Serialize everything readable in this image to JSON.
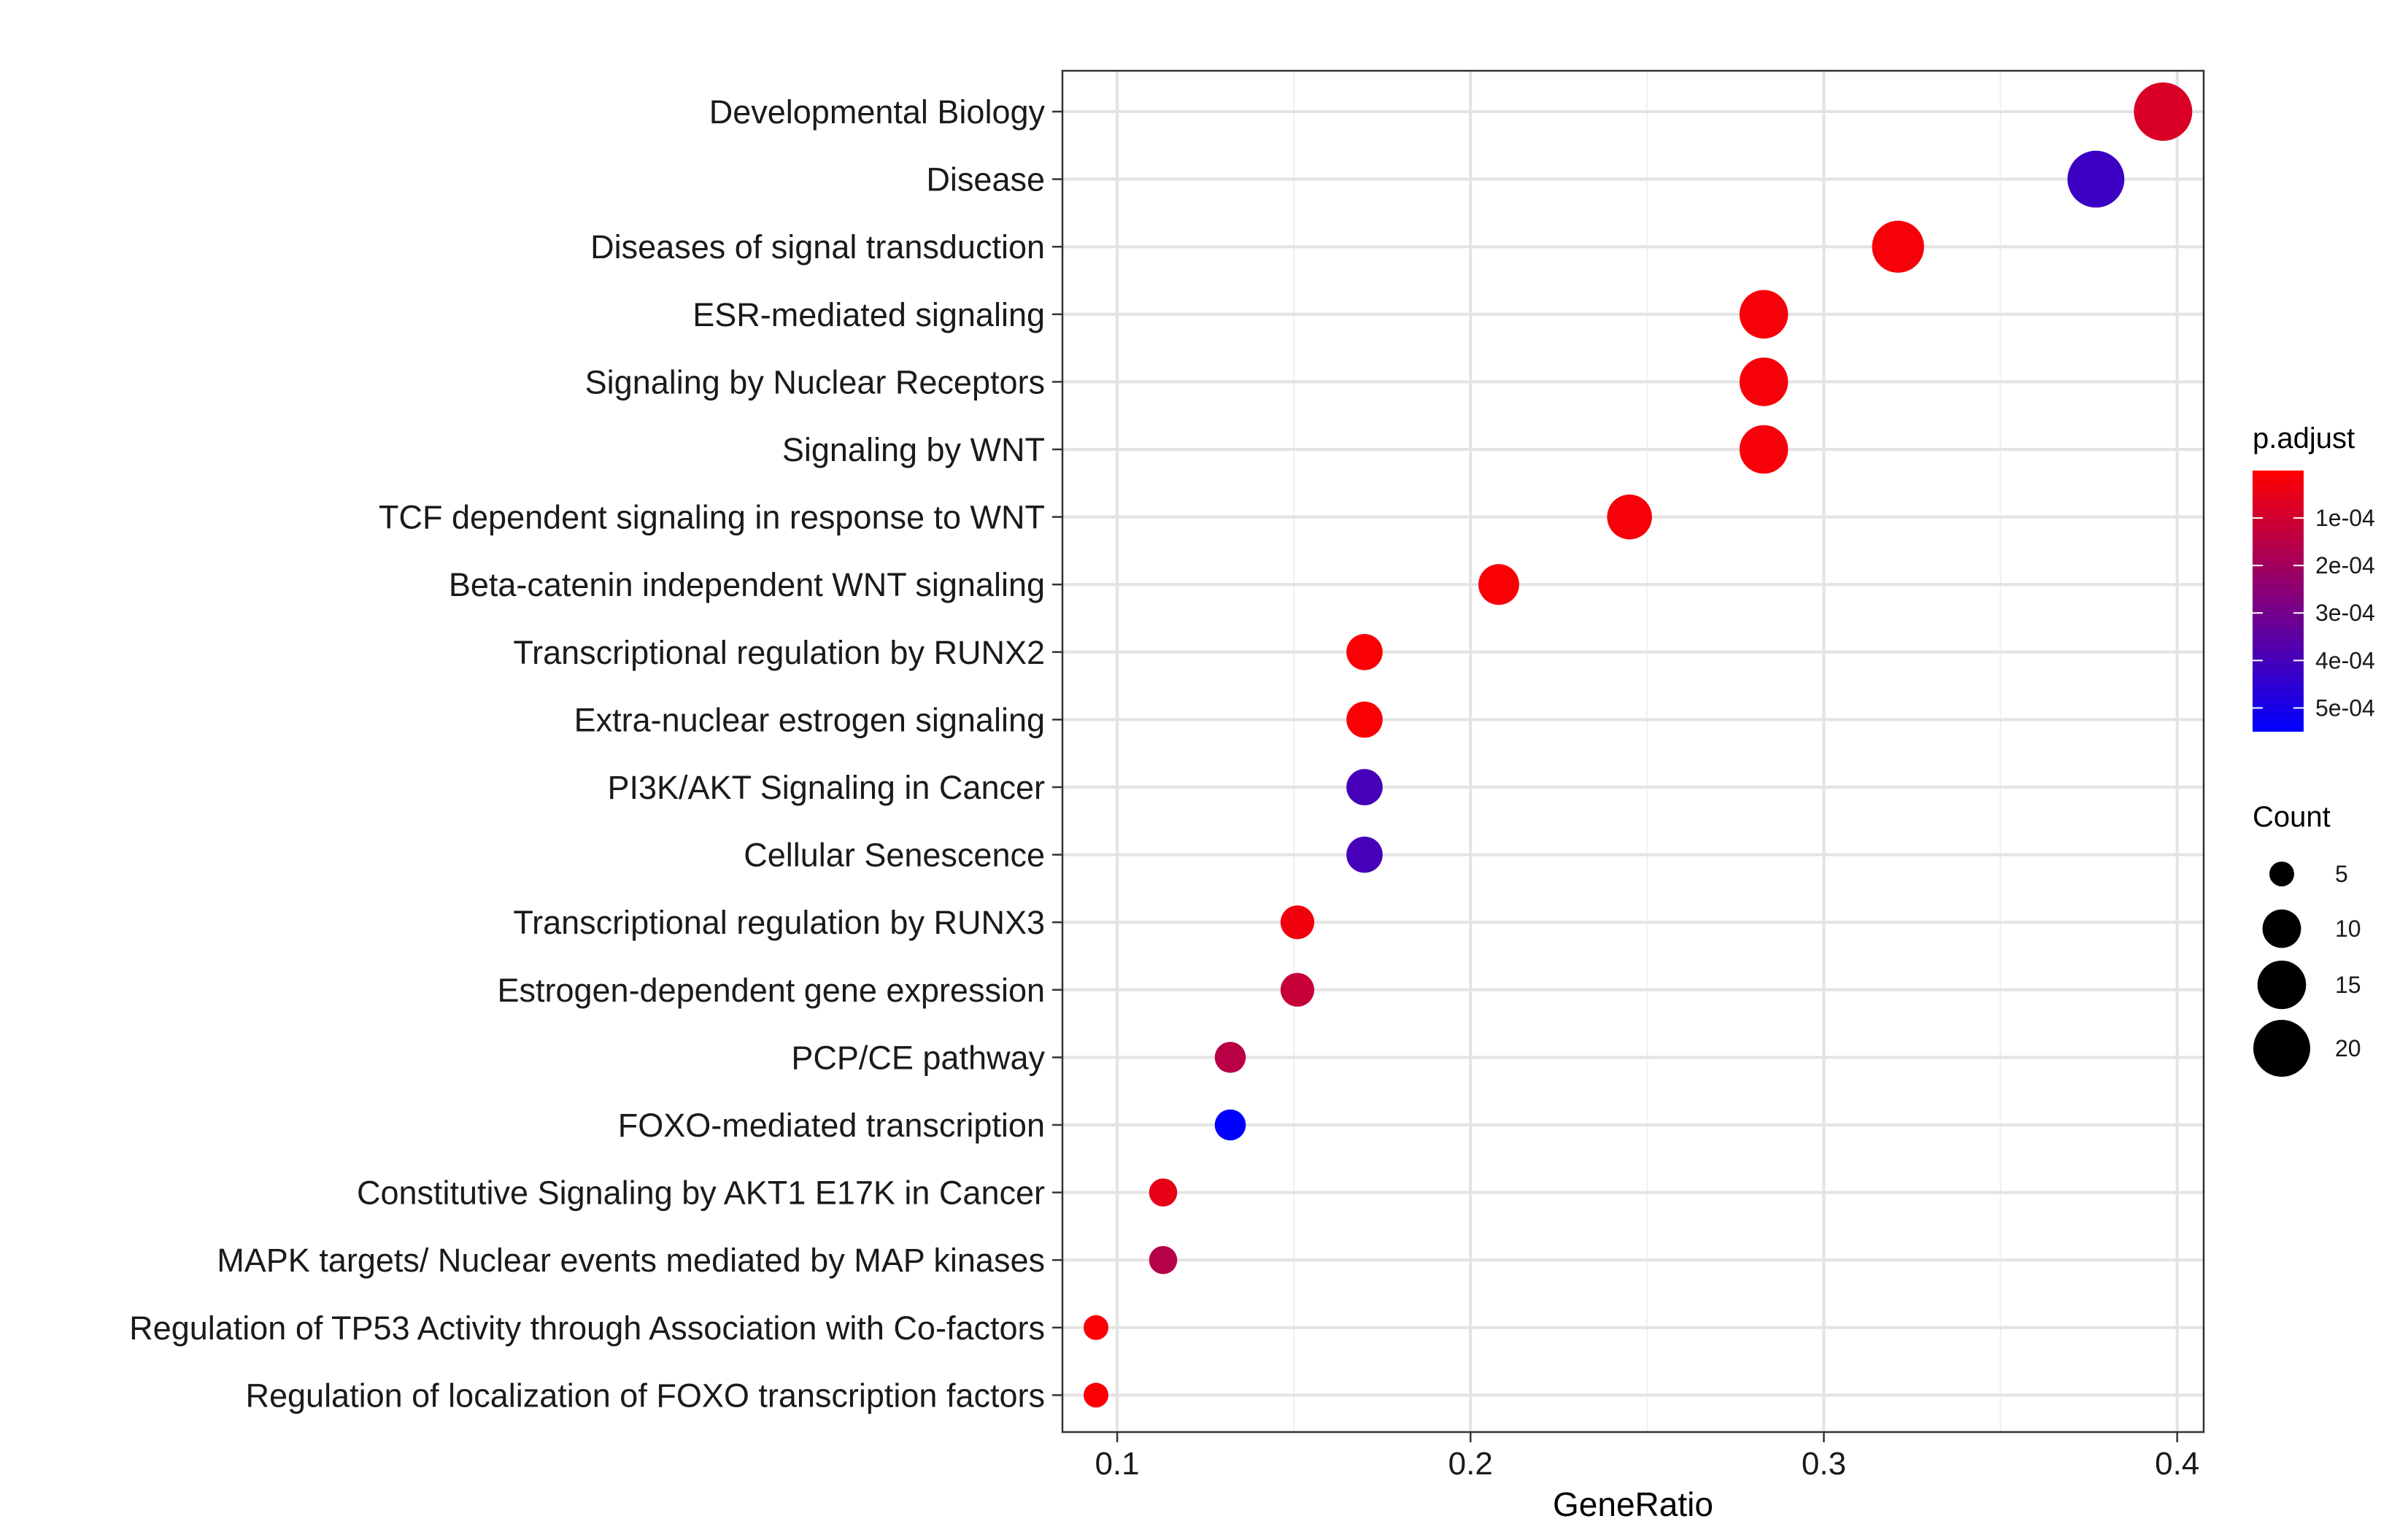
{
  "chart_data": {
    "type": "scatter",
    "xlabel": "GeneRatio",
    "ylabel": "",
    "xlim": [
      0.0845,
      0.4075
    ],
    "x_ticks": [
      0.1,
      0.2,
      0.3,
      0.4
    ],
    "x_tick_labels": [
      "0.1",
      "0.2",
      "0.3",
      "0.4"
    ],
    "grid": true,
    "categories": [
      "Developmental Biology",
      "Disease",
      "Diseases of signal transduction",
      "ESR-mediated signaling",
      "Signaling by Nuclear Receptors",
      "Signaling by WNT",
      "TCF dependent signaling in response to WNT",
      "Beta-catenin independent WNT signaling",
      "Transcriptional regulation by RUNX2",
      "Extra-nuclear estrogen signaling",
      "PI3K/AKT Signaling in Cancer",
      "Cellular Senescence",
      "Transcriptional regulation by RUNX3",
      "Estrogen-dependent gene expression",
      "PCP/CE pathway",
      "FOXO-mediated transcription",
      "Constitutive Signaling by AKT1 E17K in Cancer",
      "MAPK targets/ Nuclear events mediated by MAP kinases",
      "Regulation of TP53 Activity through Association with Co-factors",
      "Regulation of localization of FOXO transcription factors"
    ],
    "gene_ratio": [
      0.396,
      0.377,
      0.321,
      0.283,
      0.283,
      0.283,
      0.245,
      0.208,
      0.17,
      0.17,
      0.17,
      0.17,
      0.151,
      0.151,
      0.132,
      0.132,
      0.113,
      0.113,
      0.094,
      0.094
    ],
    "count": [
      21,
      20,
      17,
      15,
      15,
      15,
      13,
      11,
      9,
      9,
      9,
      9,
      8,
      8,
      7,
      7,
      6,
      6,
      5,
      5
    ],
    "p_adjust": [
      8e-05,
      0.00042,
      2e-05,
      2e-05,
      2e-05,
      2e-05,
      2e-05,
      1e-05,
      1e-05,
      1e-05,
      0.0004,
      0.0004,
      3e-05,
      0.00012,
      0.00015,
      0.00055,
      5e-05,
      0.00016,
      1e-05,
      1e-05
    ],
    "color_legend": {
      "title": "p.adjust",
      "range": [
        1e-07,
        0.00055
      ],
      "low_color": "#ff0000",
      "high_color": "#0000ff",
      "ticks": [
        0.0001,
        0.0002,
        0.0003,
        0.0004,
        0.0005
      ],
      "tick_labels": [
        "1e-04",
        "2e-04",
        "3e-04",
        "4e-04",
        "5e-04"
      ]
    },
    "size_legend": {
      "title": "Count",
      "values": [
        5,
        10,
        15,
        20
      ],
      "labels": [
        "5",
        "10",
        "15",
        "20"
      ]
    }
  }
}
